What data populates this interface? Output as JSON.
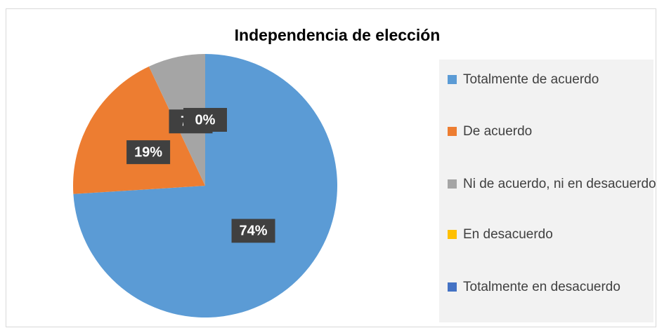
{
  "chart_data": {
    "type": "pie",
    "title": "Independencia de elección",
    "categories": [
      "Totalmente de acuerdo",
      "De acuerdo",
      "Ni de acuerdo, ni en desacuerdo",
      "En desacuerdo",
      "Totalmente en desacuerdo"
    ],
    "values": [
      74,
      19,
      7,
      0,
      0
    ],
    "value_labels": [
      "74%",
      "19%",
      "7%",
      "0%",
      "0%"
    ],
    "colors": [
      "#5b9bd5",
      "#ed7d31",
      "#a5a5a5",
      "#ffc000",
      "#4472c4"
    ],
    "legend": "right"
  }
}
